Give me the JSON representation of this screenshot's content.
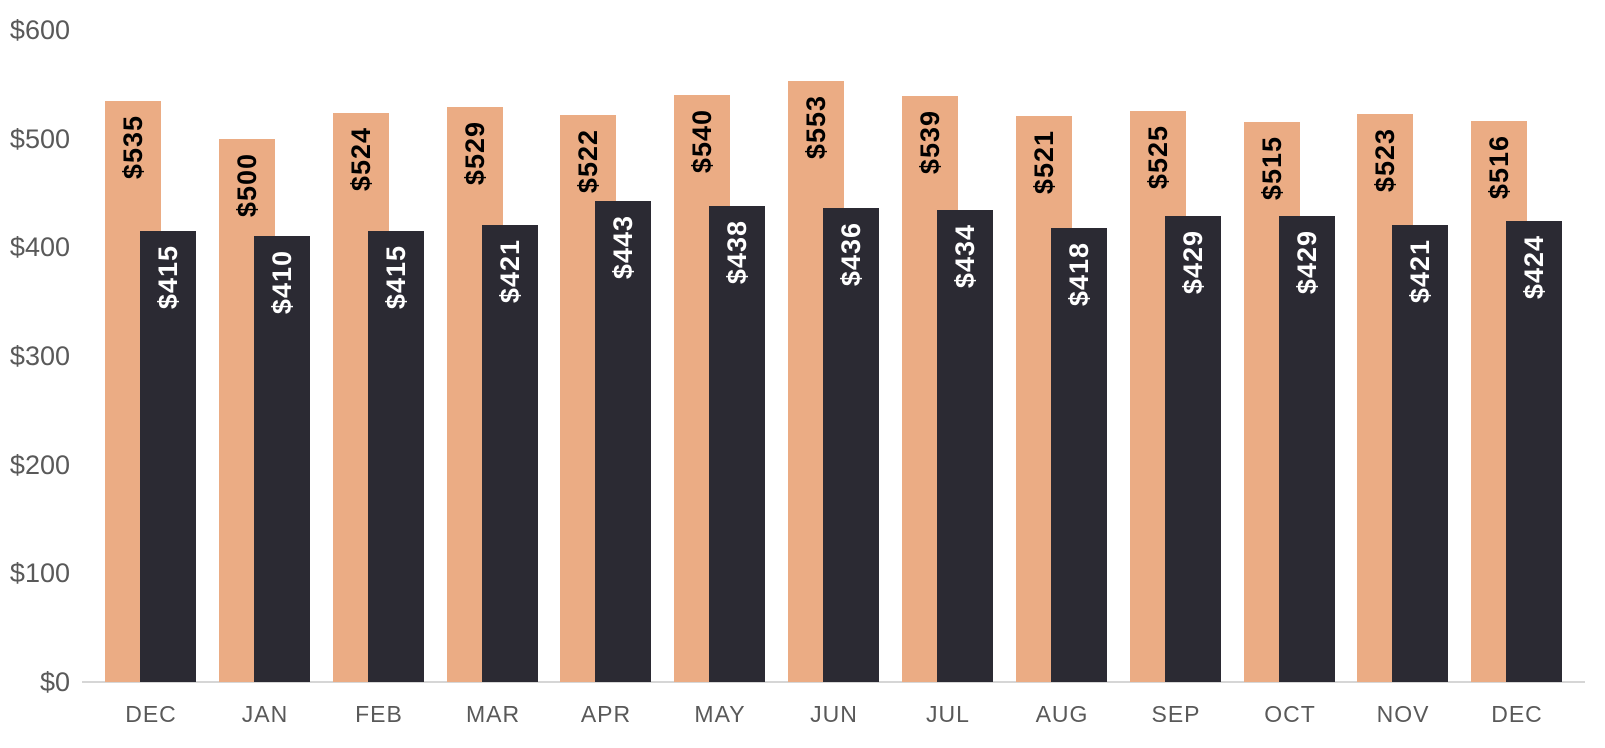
{
  "colors": {
    "background": "#ffffff",
    "series_orange": "#ebac84",
    "series_dark": "#2b2a33",
    "axis_text": "#595959",
    "axis_line": "#d6d6d6",
    "value_label_on_orange": "#000000",
    "value_label_on_dark": "#ffffff"
  },
  "chart_data": {
    "type": "bar",
    "title": "",
    "xlabel": "",
    "ylabel": "",
    "categories": [
      "DEC",
      "JAN",
      "FEB",
      "MAR",
      "APR",
      "MAY",
      "JUN",
      "JUL",
      "AUG",
      "SEP",
      "OCT",
      "NOV",
      "DEC"
    ],
    "series": [
      {
        "name": "orange",
        "color": "#ebac84",
        "values": [
          535,
          500,
          524,
          529,
          522,
          540,
          553,
          539,
          521,
          525,
          515,
          523,
          516
        ],
        "labels": [
          "$535",
          "$500",
          "$524",
          "$529",
          "$522",
          "$540",
          "$553",
          "$539",
          "$521",
          "$525",
          "$515",
          "$523",
          "$516"
        ]
      },
      {
        "name": "dark",
        "color": "#2b2a33",
        "values": [
          415,
          410,
          415,
          421,
          443,
          438,
          436,
          434,
          418,
          429,
          429,
          421,
          424
        ],
        "labels": [
          "$415",
          "$410",
          "$415",
          "$421",
          "$443",
          "$438",
          "$436",
          "$434",
          "$418",
          "$429",
          "$429",
          "$421",
          "$424"
        ]
      }
    ],
    "y_ticks": [
      {
        "value": 600,
        "label": "$600"
      },
      {
        "value": 500,
        "label": "$500"
      },
      {
        "value": 400,
        "label": "$400"
      },
      {
        "value": 300,
        "label": "$300"
      },
      {
        "value": 200,
        "label": "$200"
      },
      {
        "value": 100,
        "label": "$100"
      },
      {
        "value": 0,
        "label": "$0"
      }
    ],
    "ylim": [
      0,
      600
    ],
    "grid": false,
    "legend": "none",
    "value_labels_rotation": "vertical-bottom-to-top",
    "bar_style": "overlapping-pairs"
  }
}
